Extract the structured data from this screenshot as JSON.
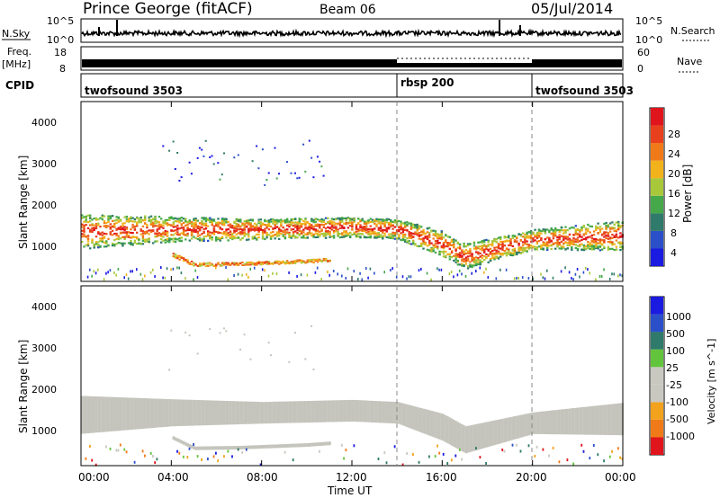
{
  "header": {
    "station": "Prince George (fitACF)",
    "beam": "Beam 06",
    "date": "05/Jul/2014"
  },
  "sky_panel": {
    "left_label": "N.Sky",
    "left_ticks": [
      "10^5",
      "10^0"
    ],
    "right_label": "N.Search",
    "right_ticks": [
      "10^5",
      "10^0"
    ]
  },
  "freq_panel": {
    "left_label_1": "Freq.",
    "left_label_2": "[MHz]",
    "left_ticks": [
      "18",
      "8"
    ],
    "right_label": "Nave",
    "right_ticks": [
      "60",
      "0"
    ]
  },
  "cpid_panel": {
    "label": "CPID",
    "modes": [
      {
        "name": "twofsound 3503",
        "start_h": 0,
        "end_h": 14
      },
      {
        "name": "rbsp 200",
        "start_h": 14,
        "end_h": 20
      },
      {
        "name": "twofsound 3503",
        "start_h": 20,
        "end_h": 24
      }
    ]
  },
  "x_axis": {
    "label": "Time UT",
    "ticks": [
      "00:00",
      "04:00",
      "08:00",
      "12:00",
      "16:00",
      "20:00",
      "00:00"
    ],
    "range_hours": [
      0,
      24
    ]
  },
  "power_panel": {
    "ylabel": "Slant Range [km]",
    "yticks": [
      "4000",
      "3000",
      "2000",
      "1000"
    ],
    "colorbar_label": "Power [dB]",
    "colorbar_ticks": [
      "28",
      "24",
      "20",
      "16",
      "12",
      "8",
      "4"
    ]
  },
  "velocity_panel": {
    "ylabel": "Slant Range [km]",
    "yticks": [
      "4000",
      "3000",
      "2000",
      "1000"
    ],
    "colorbar_label": "Velocity [m s^-1]",
    "colorbar_ticks": [
      "1000",
      "500",
      "100",
      "25",
      "-25",
      "-100",
      "-500",
      "-1000"
    ]
  },
  "colors": {
    "power_scale": [
      "#1a1ae0",
      "#2b4fc8",
      "#2f7a6a",
      "#45a84a",
      "#a8c83a",
      "#f2b21c",
      "#f07a18",
      "#e8401c",
      "#e0141c"
    ],
    "velocity_scale": [
      "#e0141c",
      "#f07a18",
      "#f2a21c",
      "#c8c8c0",
      "#c8c8c0",
      "#62c43a",
      "#2f7a6a",
      "#2b4fc8",
      "#1a1ae0"
    ],
    "ground_scatter": "#c4c4bc"
  },
  "chart_data": [
    {
      "type": "heatmap",
      "title": "Power",
      "x": "Time UT (hours)",
      "xlim": [
        0,
        24
      ],
      "ylim": [
        180,
        4500
      ],
      "ylabel": "Slant Range [km]",
      "value_label": "Power [dB]",
      "value_range": [
        0,
        30
      ],
      "features": [
        {
          "desc": "main scatter band",
          "t": [
            0,
            4,
            8,
            12,
            14,
            16,
            17,
            20,
            24
          ],
          "center_km": [
            1400,
            1450,
            1450,
            1500,
            1450,
            1100,
            800,
            1200,
            1300
          ],
          "width_km": [
            350,
            250,
            200,
            200,
            200,
            250,
            250,
            200,
            300
          ],
          "peak_db": 28
        },
        {
          "desc": "lower arc",
          "t": [
            4,
            5,
            7,
            10,
            11
          ],
          "center_km": [
            850,
            600,
            620,
            680,
            720
          ],
          "width_km": [
            100,
            80,
            70,
            80,
            80
          ],
          "peak_db": 20
        }
      ]
    },
    {
      "type": "heatmap",
      "title": "Velocity",
      "x": "Time UT (hours)",
      "xlim": [
        0,
        24
      ],
      "ylim": [
        180,
        4500
      ],
      "ylabel": "Slant Range [km]",
      "value_label": "Velocity [m s^-1]",
      "value_range": [
        -1000,
        1000
      ],
      "note_value": "ground scatter dominant (|v| < 25)"
    }
  ]
}
